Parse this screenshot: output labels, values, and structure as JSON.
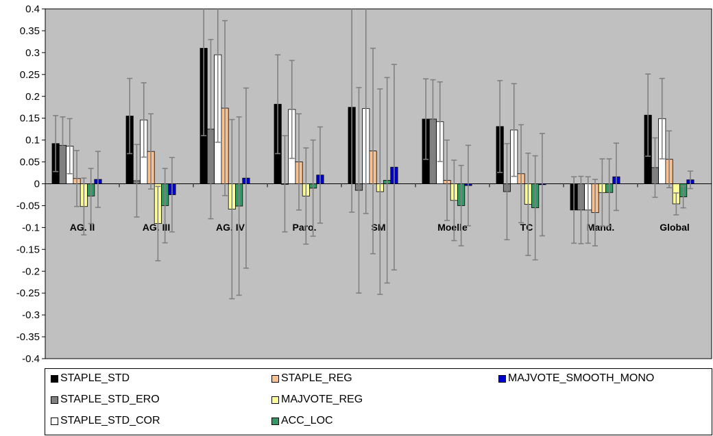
{
  "chart_data": {
    "type": "bar",
    "categories": [
      "AG. II",
      "AG. III",
      "AG. IV",
      "Paro.",
      "SM",
      "Moelle",
      "TC",
      "Mand.",
      "Global"
    ],
    "ylim": [
      -0.4,
      0.4
    ],
    "yticks": [
      "0.4",
      "0.35",
      "0.3",
      "0.25",
      "0.2",
      "0.15",
      "0.1",
      "0.05",
      "0",
      "-0.05",
      "-0.1",
      "-0.15",
      "-0.2",
      "-0.25",
      "-0.3",
      "-0.35",
      "-0.4"
    ],
    "grid": false,
    "legend_position": "bottom",
    "plot_background": "#c0c0c0",
    "series": [
      {
        "name": "STAPLE_STD",
        "color": "#000000",
        "values": [
          0.092,
          0.155,
          0.31,
          0.182,
          0.175,
          0.148,
          0.131,
          -0.06,
          0.157
        ],
        "errors": [
          0.064,
          0.086,
          0.2,
          0.113,
          0.24,
          0.092,
          0.105,
          0.076,
          0.094
        ]
      },
      {
        "name": "STAPLE_STD_ERO",
        "color": "#808080",
        "values": [
          0.088,
          0.007,
          0.125,
          0.0,
          -0.015,
          0.148,
          -0.018,
          -0.06,
          0.037
        ],
        "errors": [
          0.065,
          0.083,
          0.205,
          0.11,
          0.235,
          0.09,
          0.11,
          0.077,
          0.068
        ]
      },
      {
        "name": "STAPLE_STD_COR",
        "color": "#ffffff",
        "values": [
          0.086,
          0.146,
          0.295,
          0.17,
          0.172,
          0.142,
          0.123,
          -0.06,
          0.149
        ],
        "errors": [
          0.063,
          0.085,
          0.2,
          0.112,
          0.24,
          0.091,
          0.106,
          0.076,
          0.092
        ]
      },
      {
        "name": "STAPLE_REG",
        "color": "#fac090",
        "values": [
          0.012,
          0.074,
          0.173,
          0.05,
          0.075,
          0.008,
          0.023,
          -0.066,
          0.056
        ],
        "errors": [
          0.064,
          0.086,
          0.2,
          0.11,
          0.235,
          0.092,
          0.112,
          0.076,
          0.065
        ]
      },
      {
        "name": "MAJVOTE_REG",
        "color": "#ffff99",
        "values": [
          -0.052,
          -0.091,
          -0.058,
          -0.028,
          -0.018,
          -0.038,
          -0.047,
          -0.02,
          -0.046
        ],
        "errors": [
          0.065,
          0.085,
          0.205,
          0.11,
          0.235,
          0.092,
          0.117,
          0.077,
          0.025
        ]
      },
      {
        "name": "ACC_LOC",
        "color": "#339966",
        "values": [
          -0.028,
          -0.05,
          -0.051,
          -0.01,
          0.008,
          -0.05,
          -0.055,
          -0.02,
          -0.03
        ],
        "errors": [
          0.063,
          0.085,
          0.204,
          0.11,
          0.235,
          0.092,
          0.119,
          0.077,
          0.025
        ]
      },
      {
        "name": "MAJVOTE_SMOOTH_MONO",
        "color": "#0000cc",
        "values": [
          0.01,
          -0.025,
          0.013,
          0.02,
          0.038,
          -0.004,
          -0.002,
          0.016,
          0.009
        ],
        "errors": [
          0.064,
          0.085,
          0.206,
          0.11,
          0.235,
          0.092,
          0.117,
          0.077,
          0.02
        ]
      }
    ]
  }
}
